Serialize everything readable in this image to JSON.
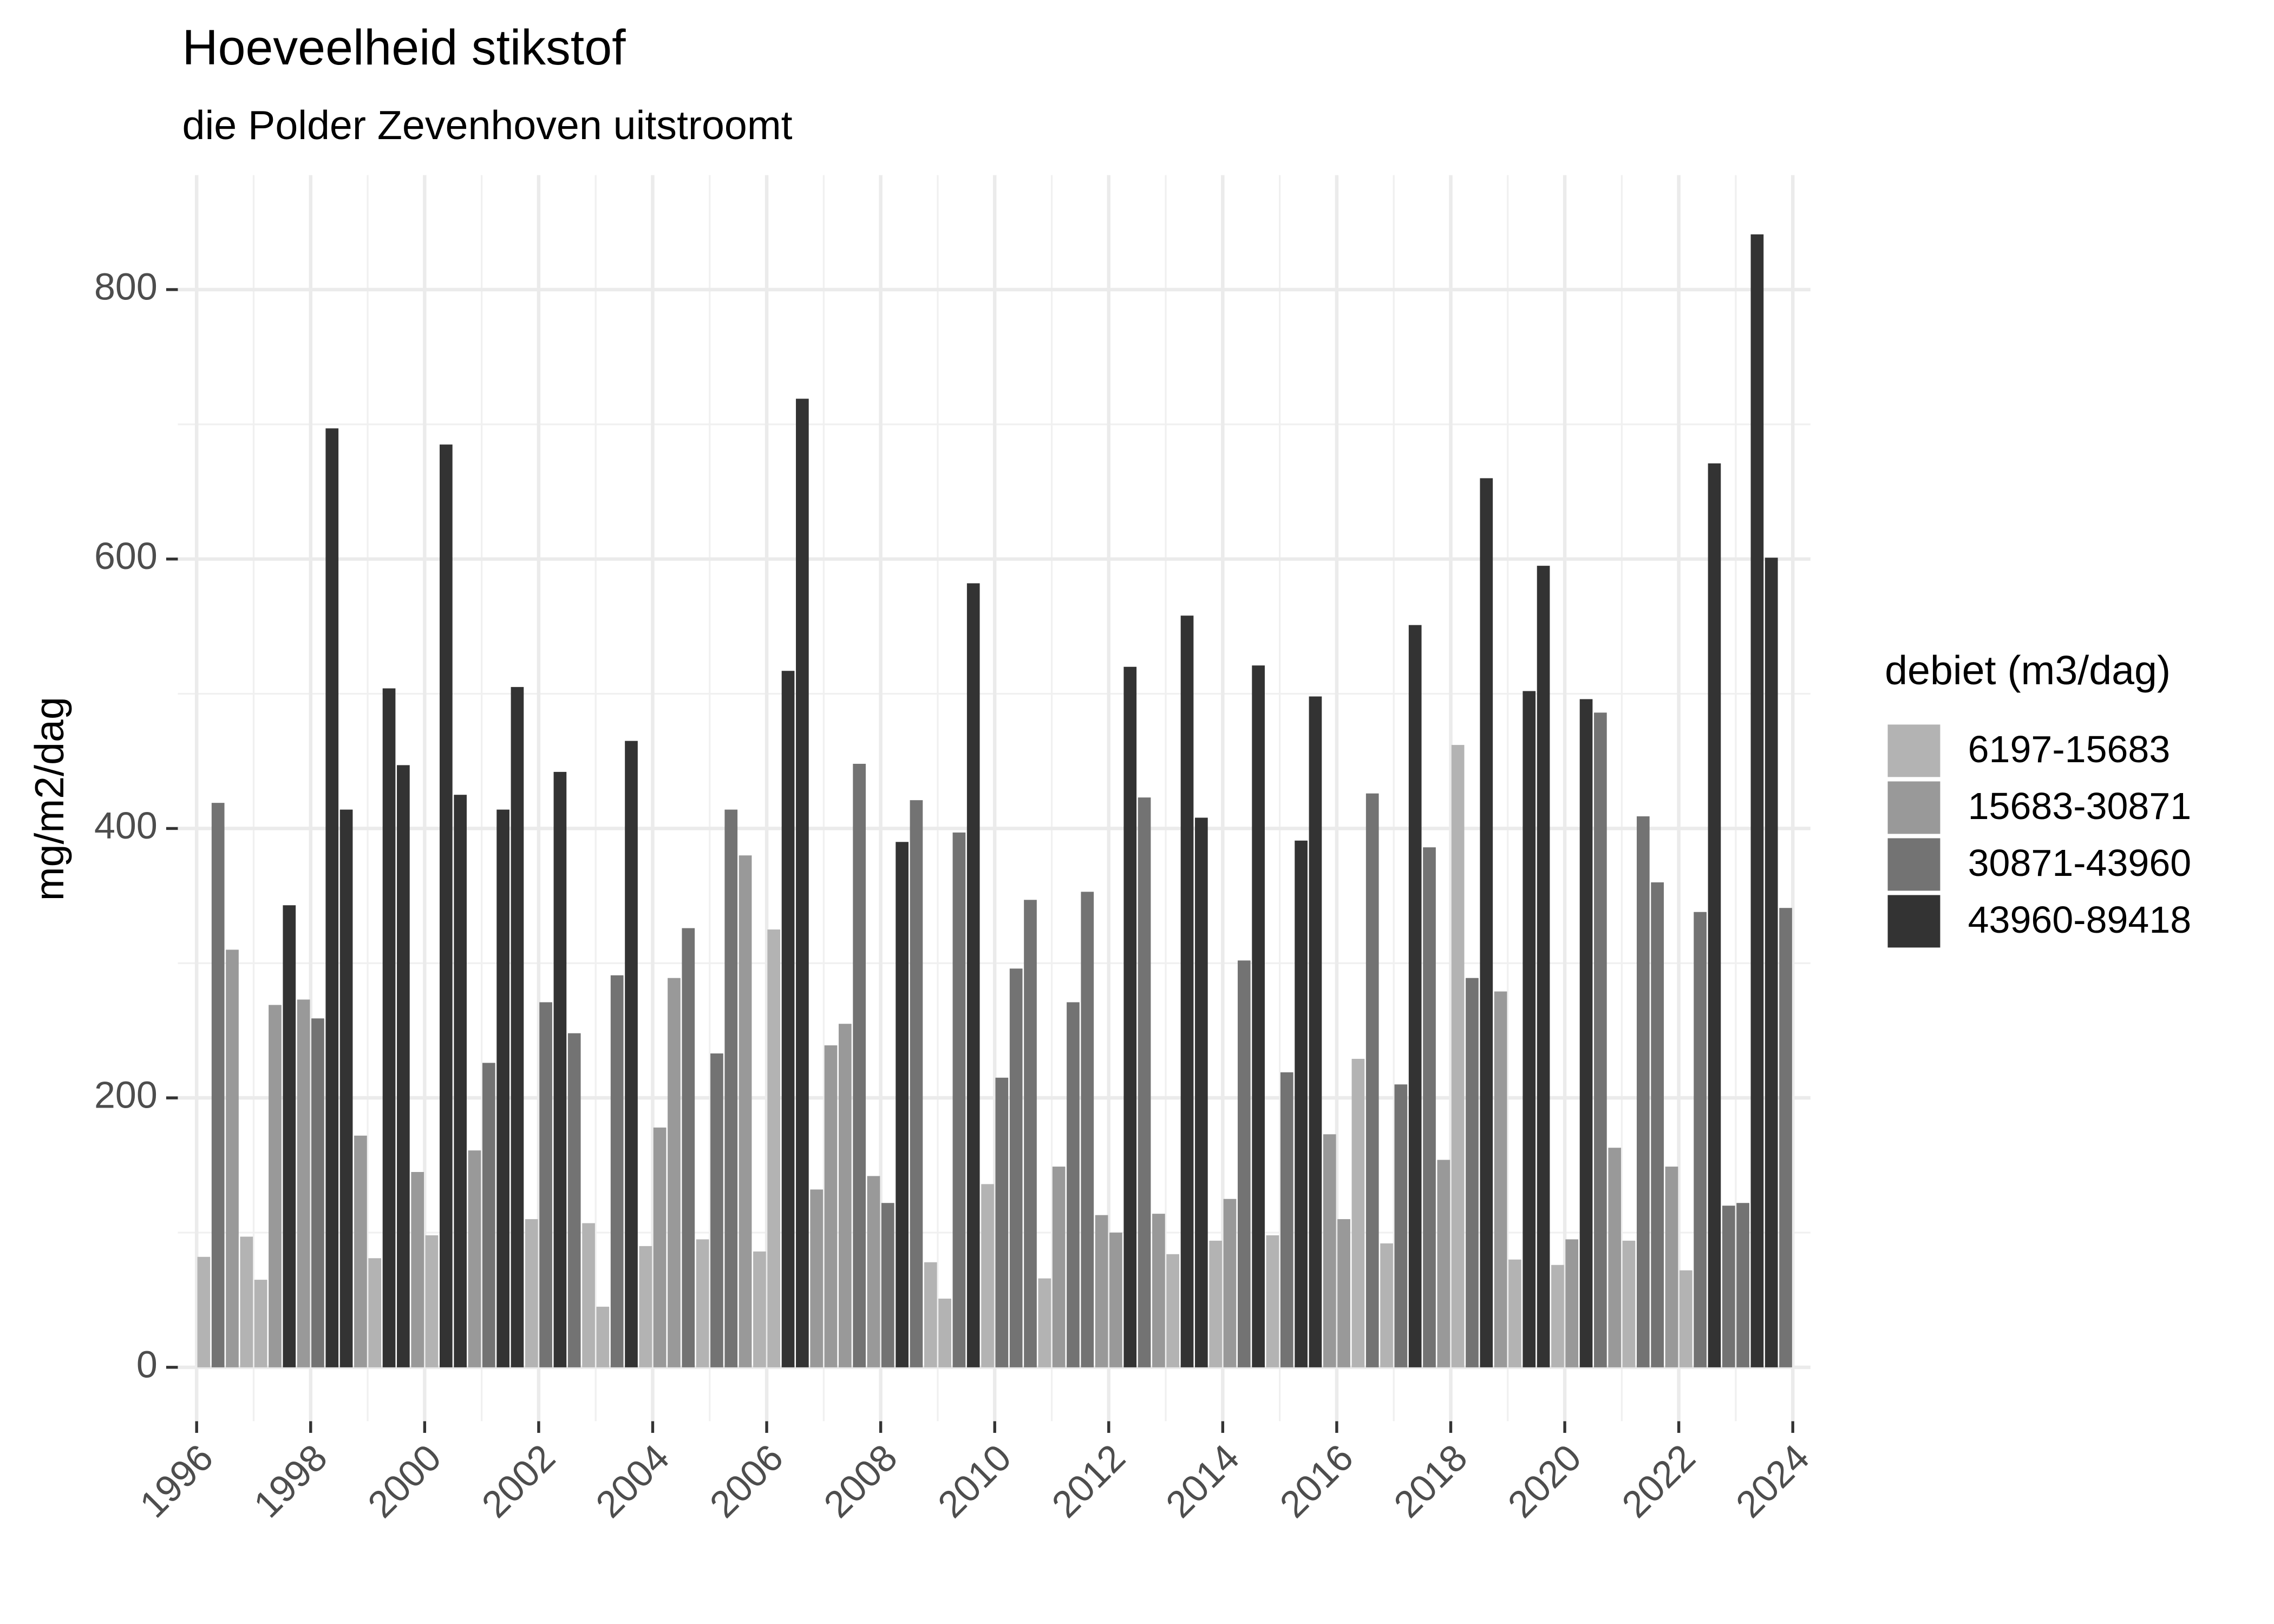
{
  "chart_data": {
    "type": "bar",
    "title": "Hoeveelheid stikstof",
    "subtitle": "die Polder Zevenhoven uitstroomt",
    "y_label": "mg/m2/dag",
    "legend_title": "debiet (m3/dag)",
    "legend": "right",
    "grid": true,
    "xlim": [
      1995.67,
      2024.31
    ],
    "xticks": [
      1996,
      1998,
      2000,
      2002,
      2004,
      2006,
      2008,
      2010,
      2012,
      2014,
      2016,
      2018,
      2020,
      2022,
      2024
    ],
    "ylim": [
      -40,
      885
    ],
    "yticks": [
      0,
      200,
      400,
      600,
      800
    ],
    "x": [
      1996,
      1996.25,
      1996.5,
      1996.75,
      1997,
      1997.25,
      1997.5,
      1997.75,
      1998,
      1998.25,
      1998.5,
      1998.75,
      1999,
      1999.25,
      1999.5,
      1999.75,
      2000,
      2000.25,
      2000.5,
      2000.75,
      2001,
      2001.25,
      2001.5,
      2001.75,
      2002,
      2002.25,
      2002.5,
      2002.75,
      2003,
      2003.25,
      2003.5,
      2003.75,
      2004,
      2004.25,
      2004.5,
      2004.75,
      2005,
      2005.25,
      2005.5,
      2005.75,
      2006,
      2006.25,
      2006.5,
      2006.75,
      2007,
      2007.25,
      2007.5,
      2007.75,
      2008,
      2008.25,
      2008.5,
      2008.75,
      2009,
      2009.25,
      2009.5,
      2009.75,
      2010,
      2010.25,
      2010.5,
      2010.75,
      2011,
      2011.25,
      2011.5,
      2011.75,
      2012,
      2012.25,
      2012.5,
      2012.75,
      2013,
      2013.25,
      2013.5,
      2013.75,
      2014,
      2014.25,
      2014.5,
      2014.75,
      2015,
      2015.25,
      2015.5,
      2015.75,
      2016,
      2016.25,
      2016.5,
      2016.75,
      2017,
      2017.25,
      2017.5,
      2017.75,
      2018,
      2018.25,
      2018.5,
      2018.75,
      2019,
      2019.25,
      2019.5,
      2019.75,
      2020,
      2020.25,
      2020.5,
      2020.75,
      2021,
      2021.25,
      2021.5,
      2021.75,
      2022,
      2022.25,
      2022.5,
      2022.75,
      2023,
      2023.25,
      2023.5,
      2023.75
    ],
    "series": [
      {
        "name": "6197-15683",
        "color": "#b3b3b3",
        "values": [
          82,
          null,
          null,
          97,
          65,
          null,
          null,
          null,
          null,
          null,
          null,
          null,
          81,
          null,
          null,
          null,
          98,
          null,
          null,
          null,
          null,
          null,
          null,
          110,
          null,
          null,
          null,
          107,
          45,
          null,
          null,
          90,
          null,
          null,
          null,
          95,
          null,
          null,
          null,
          86,
          325,
          null,
          null,
          null,
          null,
          null,
          null,
          null,
          null,
          null,
          null,
          78,
          51,
          null,
          null,
          136,
          null,
          null,
          null,
          66,
          null,
          null,
          null,
          null,
          null,
          null,
          null,
          null,
          84,
          null,
          null,
          94,
          null,
          null,
          null,
          98,
          null,
          null,
          null,
          null,
          null,
          229,
          null,
          92,
          null,
          null,
          null,
          null,
          462,
          null,
          null,
          null,
          80,
          null,
          null,
          76,
          null,
          null,
          null,
          null,
          94,
          null,
          null,
          null,
          72,
          null,
          null,
          null,
          null,
          null,
          null,
          null
        ]
      },
      {
        "name": "15683-30871",
        "color": "#999999",
        "values": [
          null,
          null,
          310,
          null,
          null,
          269,
          null,
          273,
          null,
          null,
          null,
          172,
          null,
          null,
          null,
          145,
          null,
          null,
          null,
          161,
          null,
          null,
          null,
          null,
          null,
          null,
          null,
          null,
          null,
          null,
          null,
          null,
          178,
          289,
          null,
          null,
          null,
          null,
          380,
          null,
          null,
          null,
          null,
          132,
          239,
          255,
          null,
          142,
          null,
          null,
          null,
          null,
          null,
          null,
          null,
          null,
          null,
          null,
          null,
          null,
          149,
          null,
          null,
          113,
          100,
          null,
          null,
          114,
          null,
          null,
          null,
          null,
          125,
          null,
          null,
          null,
          null,
          null,
          null,
          173,
          110,
          null,
          null,
          null,
          null,
          null,
          null,
          154,
          null,
          null,
          null,
          279,
          null,
          null,
          null,
          null,
          95,
          null,
          null,
          163,
          null,
          null,
          null,
          149,
          null,
          null,
          null,
          null,
          null,
          null,
          null,
          null
        ]
      },
      {
        "name": "30871-43960",
        "color": "#737373",
        "values": [
          null,
          419,
          null,
          null,
          null,
          null,
          null,
          null,
          259,
          null,
          null,
          null,
          null,
          null,
          null,
          null,
          null,
          null,
          null,
          null,
          226,
          null,
          null,
          null,
          271,
          null,
          248,
          null,
          null,
          291,
          null,
          null,
          null,
          null,
          326,
          null,
          233,
          414,
          null,
          null,
          null,
          null,
          null,
          null,
          null,
          null,
          448,
          null,
          122,
          null,
          421,
          null,
          null,
          397,
          null,
          null,
          215,
          296,
          347,
          null,
          null,
          271,
          353,
          null,
          null,
          null,
          423,
          null,
          null,
          null,
          null,
          null,
          null,
          302,
          null,
          null,
          219,
          null,
          null,
          null,
          null,
          null,
          426,
          null,
          210,
          null,
          386,
          null,
          null,
          289,
          null,
          null,
          null,
          null,
          null,
          null,
          null,
          null,
          486,
          null,
          null,
          409,
          360,
          null,
          null,
          338,
          null,
          120,
          122,
          null,
          null,
          341
        ]
      },
      {
        "name": "43960-89418",
        "color": "#333333",
        "values": [
          null,
          null,
          null,
          null,
          null,
          null,
          343,
          null,
          null,
          697,
          414,
          null,
          null,
          504,
          447,
          null,
          null,
          685,
          425,
          null,
          null,
          414,
          505,
          null,
          null,
          442,
          null,
          null,
          null,
          null,
          465,
          null,
          null,
          null,
          null,
          null,
          null,
          null,
          null,
          null,
          null,
          517,
          719,
          null,
          null,
          null,
          null,
          null,
          null,
          390,
          null,
          null,
          null,
          null,
          582,
          null,
          null,
          null,
          null,
          null,
          null,
          null,
          null,
          null,
          null,
          520,
          null,
          null,
          null,
          558,
          408,
          null,
          null,
          null,
          521,
          null,
          null,
          391,
          498,
          null,
          null,
          null,
          null,
          null,
          null,
          551,
          null,
          null,
          null,
          null,
          660,
          null,
          null,
          502,
          595,
          null,
          null,
          496,
          null,
          null,
          null,
          null,
          null,
          null,
          null,
          null,
          671,
          null,
          null,
          841,
          601,
          null
        ]
      }
    ]
  }
}
